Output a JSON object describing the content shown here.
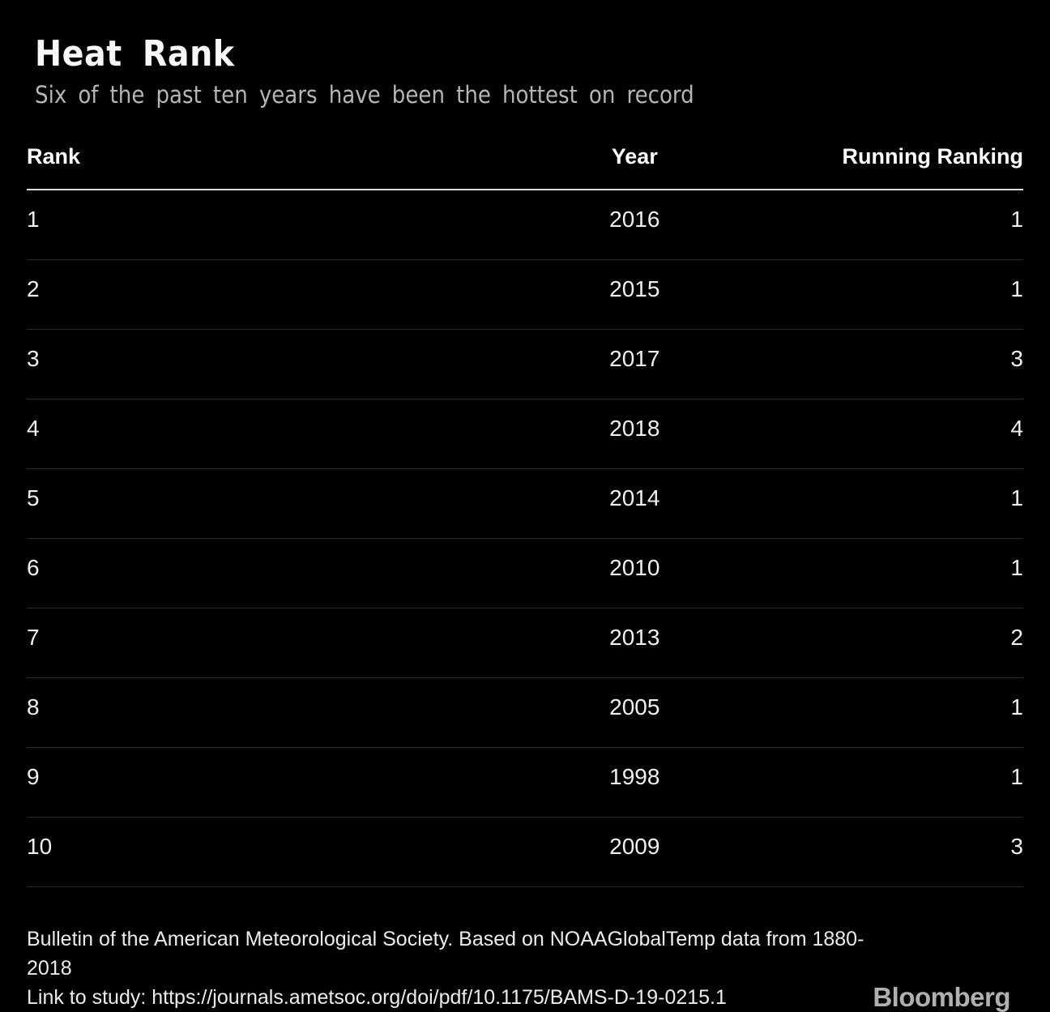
{
  "header": {
    "title": "Heat Rank",
    "subtitle": "Six of the past ten years have been the hottest on record"
  },
  "chart_data": {
    "type": "table",
    "title": "Heat Rank",
    "subtitle": "Six of the past ten years have been the hottest on record",
    "columns": [
      "Rank",
      "Year",
      "Running Ranking"
    ],
    "rows": [
      {
        "rank": "1",
        "year": "2016",
        "running_ranking": "1"
      },
      {
        "rank": "2",
        "year": "2015",
        "running_ranking": "1"
      },
      {
        "rank": "3",
        "year": "2017",
        "running_ranking": "3"
      },
      {
        "rank": "4",
        "year": "2018",
        "running_ranking": "4"
      },
      {
        "rank": "5",
        "year": "2014",
        "running_ranking": "1"
      },
      {
        "rank": "6",
        "year": "2010",
        "running_ranking": "1"
      },
      {
        "rank": "7",
        "year": "2013",
        "running_ranking": "2"
      },
      {
        "rank": "8",
        "year": "2005",
        "running_ranking": "1"
      },
      {
        "rank": "9",
        "year": "1998",
        "running_ranking": "1"
      },
      {
        "rank": "10",
        "year": "2009",
        "running_ranking": "3"
      }
    ],
    "layout": {
      "grid": "horizontal-row-dividers",
      "header_underline": true,
      "theme": "dark"
    }
  },
  "footer": {
    "source_line": "Bulletin of the American Meteorological Society. Based on NOAAGlobalTemp data from 1880-2018",
    "link_line": "Link to study: https://journals.ametsoc.org/doi/pdf/10.1175/BAMS-D-19-0215.1",
    "brand": "Bloomberg"
  },
  "colors": {
    "background": "#000000",
    "title_text": "#f7f7f7",
    "subtitle_text": "#b5b5b5",
    "header_text": "#ffffff",
    "cell_text": "#f0f0f0",
    "row_divider": "#2b2b2b",
    "header_underline": "#dcdcdc",
    "footer_text": "#ececec",
    "brand_text": "#b0b0b0"
  }
}
